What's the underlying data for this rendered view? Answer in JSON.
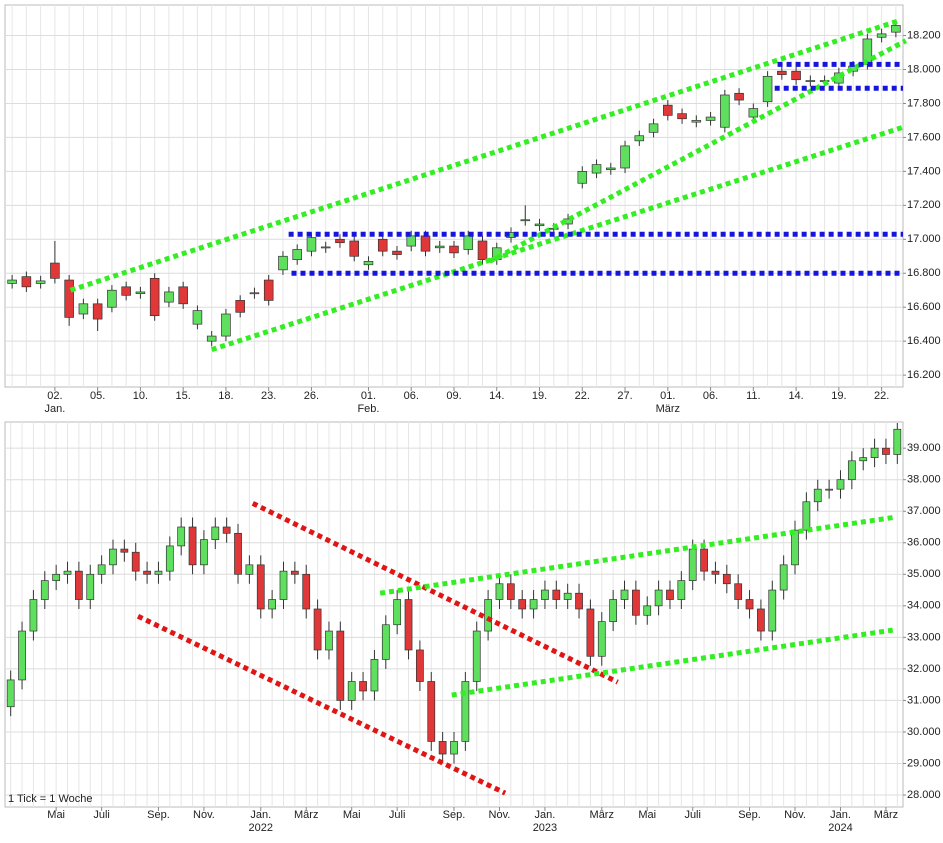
{
  "chart_data": [
    {
      "type": "candlestick",
      "categories": [
        null,
        null,
        null,
        "02.",
        null,
        null,
        "05.",
        null,
        null,
        "10.",
        null,
        null,
        "15.",
        null,
        null,
        "18.",
        null,
        null,
        "23.",
        null,
        null,
        "26.",
        null,
        null,
        null,
        "01.",
        null,
        null,
        "06.",
        null,
        null,
        "09.",
        null,
        null,
        "14.",
        null,
        null,
        "19.",
        null,
        null,
        "22.",
        null,
        null,
        "27.",
        null,
        null,
        "01.",
        null,
        null,
        "06.",
        null,
        null,
        "11.",
        null,
        null,
        "14.",
        null,
        null,
        "19.",
        null,
        null,
        "22.",
        null
      ],
      "sublabels": [
        null,
        null,
        null,
        "Jan.",
        null,
        null,
        null,
        null,
        null,
        null,
        null,
        null,
        null,
        null,
        null,
        null,
        null,
        null,
        null,
        null,
        null,
        null,
        null,
        null,
        null,
        "Feb.",
        null,
        null,
        null,
        null,
        null,
        null,
        null,
        null,
        null,
        null,
        null,
        null,
        null,
        null,
        null,
        null,
        null,
        null,
        null,
        null,
        "März",
        null,
        null,
        null,
        null,
        null,
        null,
        null,
        null,
        null,
        null,
        null,
        null,
        null,
        null,
        null,
        null
      ],
      "open": [
        16740,
        16780,
        16740,
        16860,
        16760,
        16560,
        16620,
        16600,
        16720,
        16680,
        16770,
        16630,
        16720,
        16500,
        16400,
        16430,
        16640,
        16680,
        16760,
        16820,
        16880,
        16930,
        16950,
        17000,
        16990,
        16850,
        17000,
        16930,
        16960,
        17020,
        16950,
        16960,
        16940,
        16990,
        16880,
        17010,
        17110,
        17080,
        17060,
        17090,
        17330,
        17390,
        17410,
        17420,
        17580,
        17630,
        17790,
        17740,
        17690,
        17700,
        17660,
        17860,
        17720,
        17810,
        17990,
        17990,
        17930,
        17930,
        17920,
        17990,
        18030,
        18190,
        18220
      ],
      "high": [
        16790,
        16810,
        16785,
        16990,
        16790,
        16650,
        16650,
        16730,
        16750,
        16720,
        16800,
        16720,
        16750,
        16610,
        16460,
        16590,
        16670,
        16715,
        16790,
        16930,
        16970,
        17040,
        16985,
        17030,
        17020,
        16900,
        17030,
        16960,
        17050,
        17050,
        16990,
        16990,
        17050,
        17020,
        16980,
        17070,
        17200,
        17120,
        17095,
        17150,
        17430,
        17470,
        17450,
        17580,
        17640,
        17710,
        17820,
        17770,
        17730,
        17750,
        17880,
        17890,
        17800,
        17990,
        18020,
        18020,
        17965,
        17965,
        18010,
        18050,
        18210,
        18240,
        18290
      ],
      "low": [
        16710,
        16690,
        16710,
        16740,
        16490,
        16530,
        16460,
        16570,
        16640,
        16650,
        16520,
        16600,
        16590,
        16470,
        16370,
        16400,
        16540,
        16650,
        16610,
        16790,
        16850,
        16900,
        16920,
        16950,
        16870,
        16820,
        16900,
        16880,
        16930,
        16900,
        16920,
        16890,
        16910,
        16850,
        16850,
        16980,
        17080,
        17050,
        17030,
        17060,
        17300,
        17360,
        17380,
        17390,
        17550,
        17600,
        17700,
        17680,
        17660,
        17670,
        17630,
        17790,
        17690,
        17780,
        17940,
        17910,
        17900,
        17900,
        17890,
        17960,
        18000,
        18160,
        18190
      ],
      "close": [
        16760,
        16720,
        16755,
        16770,
        16540,
        16620,
        16530,
        16700,
        16670,
        16690,
        16550,
        16690,
        16620,
        16580,
        16430,
        16560,
        16570,
        16685,
        16640,
        16900,
        16940,
        17010,
        16955,
        16980,
        16900,
        16870,
        16930,
        16910,
        17020,
        16930,
        16960,
        16920,
        17020,
        16880,
        16950,
        17040,
        17115,
        17090,
        17065,
        17120,
        17400,
        17440,
        17420,
        17550,
        17610,
        17680,
        17730,
        17710,
        17700,
        17720,
        17850,
        17820,
        17770,
        17960,
        17970,
        17940,
        17935,
        17935,
        17980,
        18020,
        18180,
        18210,
        18260
      ],
      "up_color": "#5ee05e",
      "down_color": "#e03838",
      "ylim": [
        16130,
        18380
      ],
      "yticks": [
        {
          "value": 16200,
          "label": "16.200"
        },
        {
          "value": 16400,
          "label": "16.400"
        },
        {
          "value": 16600,
          "label": "16.600"
        },
        {
          "value": 16800,
          "label": "16.800"
        },
        {
          "value": 17000,
          "label": "17.000"
        },
        {
          "value": 17200,
          "label": "17.200"
        },
        {
          "value": 17400,
          "label": "17.400"
        },
        {
          "value": 17600,
          "label": "17.600"
        },
        {
          "value": 17800,
          "label": "17.800"
        },
        {
          "value": 18000,
          "label": "18.000"
        },
        {
          "value": 18200,
          "label": "18.200"
        }
      ],
      "grid": true,
      "lines": [
        {
          "color": "#33ee22",
          "from": [
            4.1,
            16700
          ],
          "to": [
            62.3,
            18290
          ]
        },
        {
          "color": "#33ee22",
          "from": [
            14.0,
            16350
          ],
          "to": [
            62.5,
            17660
          ]
        },
        {
          "color": "#33ee22",
          "from": [
            33.5,
            16870
          ],
          "to": [
            62.7,
            18170
          ]
        },
        {
          "color": "#1515dd",
          "from": [
            19.4,
            17030
          ],
          "to": [
            62.5,
            17030
          ]
        },
        {
          "color": "#1515dd",
          "from": [
            19.6,
            16800
          ],
          "to": [
            62.5,
            16800
          ]
        },
        {
          "color": "#1515dd",
          "from": [
            53.7,
            18030
          ],
          "to": [
            62.5,
            18030
          ]
        },
        {
          "color": "#1515dd",
          "from": [
            53.5,
            17890
          ],
          "to": [
            62.5,
            17890
          ]
        }
      ]
    },
    {
      "type": "candlestick",
      "note": "1 Tick = 1 Woche",
      "categories": [
        null,
        null,
        null,
        null,
        "Mai",
        null,
        null,
        null,
        "Juli",
        null,
        null,
        null,
        null,
        "Sep.",
        null,
        null,
        null,
        "Nov.",
        null,
        null,
        null,
        null,
        "Jan.",
        null,
        null,
        null,
        "März",
        null,
        null,
        null,
        "Mai",
        null,
        null,
        null,
        "Juli",
        null,
        null,
        null,
        null,
        "Sep.",
        null,
        null,
        null,
        "Nov.",
        null,
        null,
        null,
        "Jan.",
        null,
        null,
        null,
        null,
        "März",
        null,
        null,
        null,
        "Mai",
        null,
        null,
        null,
        "Juli",
        null,
        null,
        null,
        null,
        "Sep.",
        null,
        null,
        null,
        "Nov.",
        null,
        null,
        null,
        "Jan.",
        null,
        null,
        null,
        "März",
        null
      ],
      "sublabels": [
        null,
        null,
        null,
        null,
        null,
        null,
        null,
        null,
        null,
        null,
        null,
        null,
        null,
        null,
        null,
        null,
        null,
        null,
        null,
        null,
        null,
        null,
        "2022",
        null,
        null,
        null,
        null,
        null,
        null,
        null,
        null,
        null,
        null,
        null,
        null,
        null,
        null,
        null,
        null,
        null,
        null,
        null,
        null,
        null,
        null,
        null,
        null,
        "2023",
        null,
        null,
        null,
        null,
        null,
        null,
        null,
        null,
        null,
        null,
        null,
        null,
        null,
        null,
        null,
        null,
        null,
        null,
        null,
        null,
        null,
        null,
        null,
        null,
        null,
        "2024",
        null,
        null,
        null,
        null,
        null
      ],
      "open": [
        30800,
        31650,
        33200,
        34200,
        34800,
        35000,
        35100,
        34200,
        35000,
        35300,
        35800,
        35700,
        35100,
        35000,
        35100,
        35900,
        36500,
        35300,
        36100,
        36500,
        36300,
        35000,
        35300,
        33900,
        34200,
        35100,
        35000,
        33900,
        32600,
        33200,
        31000,
        31600,
        31300,
        32300,
        33400,
        34200,
        32600,
        31600,
        29700,
        29300,
        29700,
        31600,
        33200,
        34200,
        34700,
        34200,
        33900,
        34200,
        34500,
        34200,
        34400,
        33900,
        32400,
        33500,
        34200,
        34500,
        33700,
        34000,
        34500,
        34200,
        34800,
        35800,
        35100,
        35000,
        34700,
        34200,
        33900,
        33200,
        34500,
        35300,
        36400,
        37300,
        37700,
        37700,
        38000,
        38600,
        38700,
        39000,
        38800
      ],
      "high": [
        31950,
        33500,
        34500,
        35100,
        35300,
        35400,
        35400,
        35300,
        35600,
        36100,
        36100,
        36000,
        35400,
        35400,
        36200,
        36800,
        36800,
        36400,
        36800,
        36800,
        36600,
        35600,
        35600,
        34500,
        35400,
        35400,
        35300,
        34200,
        33500,
        33500,
        31900,
        31900,
        32600,
        33700,
        34500,
        34500,
        32900,
        31900,
        30000,
        30000,
        31900,
        33500,
        34500,
        35000,
        35000,
        34500,
        34500,
        34800,
        34800,
        34700,
        34700,
        34200,
        33800,
        34500,
        34800,
        34800,
        34300,
        34800,
        34800,
        35100,
        36100,
        36100,
        35400,
        35300,
        35000,
        34500,
        34200,
        34800,
        35600,
        36700,
        37600,
        38000,
        38000,
        38300,
        38900,
        39000,
        39300,
        39300,
        39800
      ],
      "low": [
        30500,
        31350,
        32900,
        33900,
        34500,
        34700,
        33900,
        33900,
        34700,
        35000,
        35400,
        34800,
        34700,
        34700,
        34800,
        35600,
        35000,
        35000,
        35800,
        36000,
        34700,
        34700,
        33600,
        33600,
        33900,
        34700,
        33600,
        32300,
        32300,
        30700,
        30700,
        31000,
        31000,
        32000,
        33100,
        32300,
        31300,
        29400,
        29000,
        29000,
        29400,
        31300,
        32900,
        33900,
        33900,
        33600,
        33600,
        33900,
        33900,
        33900,
        33600,
        32100,
        32100,
        33200,
        33900,
        33400,
        33400,
        33700,
        33900,
        33900,
        34500,
        34800,
        34700,
        34400,
        33900,
        33600,
        32900,
        32900,
        34200,
        35000,
        36100,
        37000,
        37400,
        37400,
        37700,
        38300,
        38400,
        38500,
        38500
      ],
      "close": [
        31650,
        33200,
        34200,
        34800,
        35000,
        35100,
        34200,
        35000,
        35300,
        35800,
        35700,
        35100,
        35000,
        35100,
        35900,
        36500,
        35300,
        36100,
        36500,
        36300,
        35000,
        35300,
        33900,
        34200,
        35100,
        35000,
        33900,
        32600,
        33200,
        31000,
        31600,
        31300,
        32300,
        33400,
        34200,
        32600,
        31600,
        29700,
        29300,
        29700,
        31600,
        33200,
        34200,
        34700,
        34200,
        33900,
        34200,
        34500,
        34200,
        34400,
        33900,
        32400,
        33500,
        34200,
        34500,
        33700,
        34000,
        34500,
        34200,
        34800,
        35800,
        35100,
        35000,
        34700,
        34200,
        33900,
        33200,
        34500,
        35300,
        36400,
        37300,
        37700,
        37700,
        38000,
        38600,
        38700,
        39000,
        38800,
        39600
      ],
      "up_color": "#5ee05e",
      "down_color": "#e03838",
      "ylim": [
        27620,
        39830
      ],
      "yticks": [
        {
          "value": 28000,
          "label": "28.000"
        },
        {
          "value": 29000,
          "label": "29.000"
        },
        {
          "value": 30000,
          "label": "30.000"
        },
        {
          "value": 31000,
          "label": "31.000"
        },
        {
          "value": 32000,
          "label": "32.000"
        },
        {
          "value": 33000,
          "label": "33.000"
        },
        {
          "value": 34000,
          "label": "34.000"
        },
        {
          "value": 35000,
          "label": "35.000"
        },
        {
          "value": 36000,
          "label": "36.000"
        },
        {
          "value": 37000,
          "label": "37.000"
        },
        {
          "value": 38000,
          "label": "38.000"
        },
        {
          "value": 39000,
          "label": "39.000"
        }
      ],
      "grid": true,
      "lines": [
        {
          "color": "#e01515",
          "from": [
            21.3,
            37250
          ],
          "to": [
            53.4,
            31580
          ]
        },
        {
          "color": "#e01515",
          "from": [
            11.2,
            33670
          ],
          "to": [
            43.5,
            28060
          ]
        },
        {
          "color": "#33ee22",
          "from": [
            32.5,
            34400
          ],
          "to": [
            77.6,
            36800
          ]
        },
        {
          "color": "#33ee22",
          "from": [
            38.8,
            31170
          ],
          "to": [
            77.6,
            33230
          ]
        }
      ]
    }
  ]
}
